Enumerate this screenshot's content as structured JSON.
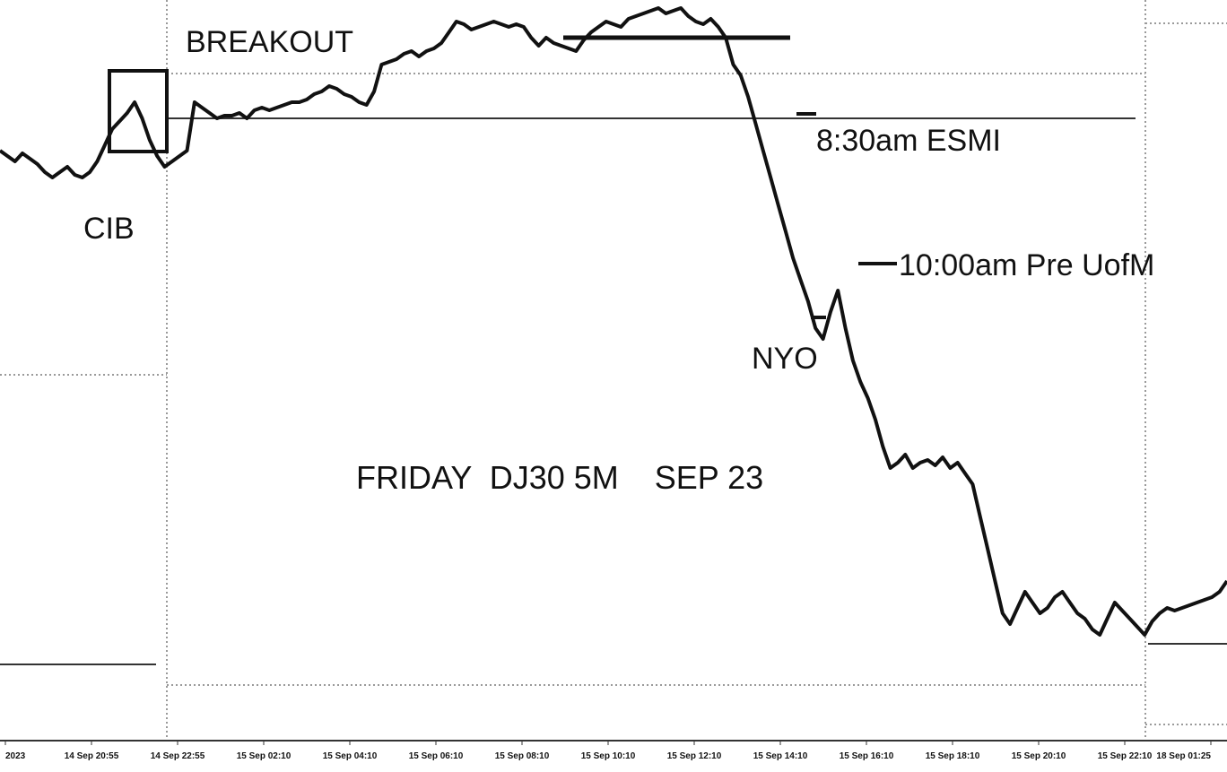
{
  "chart_data": {
    "type": "line",
    "title": "FRIDAY  DJ30 5M    SEP 23",
    "x_tick_labels": [
      "2023",
      "14 Sep 20:55",
      "14 Sep 22:55",
      "15 Sep 02:10",
      "15 Sep 04:10",
      "15 Sep 06:10",
      "15 Sep 08:10",
      "15 Sep 10:10",
      "15 Sep 12:10",
      "15 Sep 14:10",
      "15 Sep 16:10",
      "15 Sep 18:10",
      "15 Sep 20:10",
      "15 Sep 22:10",
      "18 Sep 01:25"
    ],
    "annotations": {
      "breakout": "BREAKOUT",
      "cib": "CIB",
      "esmi": "8:30am ESMI",
      "pre_uofm": "10:00am Pre UofM",
      "nyo": "NYO"
    },
    "series": [
      {
        "values": [
          0.88,
          0.86,
          0.84,
          0.87,
          0.85,
          0.83,
          0.8,
          0.78,
          0.8,
          0.82,
          0.79,
          0.78,
          0.8,
          0.84,
          0.9,
          0.96,
          0.99,
          1.02,
          1.06,
          1.0,
          0.92,
          0.86,
          0.82,
          0.84,
          0.86,
          0.88,
          1.06,
          1.04,
          1.02,
          1.0,
          1.01,
          1.01,
          1.02,
          1.0,
          1.03,
          1.04,
          1.03,
          1.04,
          1.05,
          1.06,
          1.06,
          1.07,
          1.09,
          1.1,
          1.12,
          1.11,
          1.09,
          1.08,
          1.06,
          1.05,
          1.1,
          1.2,
          1.21,
          1.22,
          1.24,
          1.25,
          1.23,
          1.25,
          1.26,
          1.28,
          1.32,
          1.36,
          1.35,
          1.33,
          1.34,
          1.35,
          1.36,
          1.35,
          1.34,
          1.35,
          1.34,
          1.3,
          1.27,
          1.3,
          1.28,
          1.27,
          1.26,
          1.25,
          1.29,
          1.32,
          1.34,
          1.36,
          1.35,
          1.34,
          1.37,
          1.38,
          1.39,
          1.4,
          1.41,
          1.39,
          1.4,
          1.41,
          1.38,
          1.36,
          1.35,
          1.37,
          1.34,
          1.3,
          1.2,
          1.16,
          1.08,
          0.98,
          0.88,
          0.78,
          0.68,
          0.58,
          0.48,
          0.4,
          0.32,
          0.22,
          0.18,
          0.28,
          0.36,
          0.22,
          0.1,
          0.02,
          -0.04,
          -0.12,
          -0.22,
          -0.3,
          -0.28,
          -0.25,
          -0.3,
          -0.28,
          -0.27,
          -0.29,
          -0.26,
          -0.3,
          -0.28,
          -0.32,
          -0.36,
          -0.48,
          -0.6,
          -0.72,
          -0.84,
          -0.88,
          -0.82,
          -0.76,
          -0.8,
          -0.84,
          -0.82,
          -0.78,
          -0.76,
          -0.8,
          -0.84,
          -0.86,
          -0.9,
          -0.92,
          -0.86,
          -0.8,
          -0.83,
          -0.86,
          -0.89,
          -0.92,
          -0.87,
          -0.84,
          -0.82,
          -0.83,
          -0.82,
          -0.81,
          -0.8,
          -0.79,
          -0.78,
          -0.76,
          -0.72
        ]
      }
    ]
  }
}
